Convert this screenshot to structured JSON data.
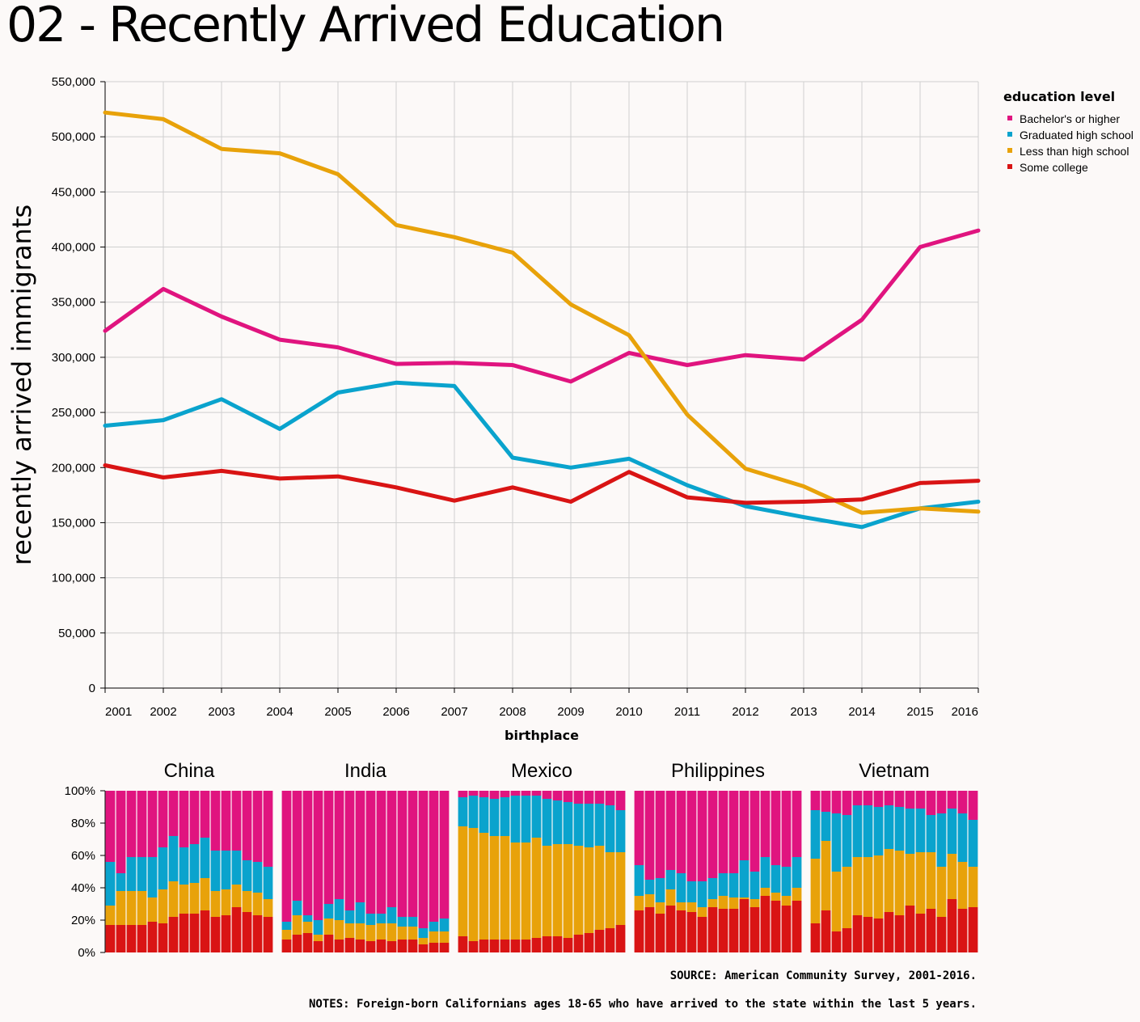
{
  "page_title": "02 - Recently Arrived Education",
  "source": "SOURCE: American Community Survey, 2001-2016.",
  "notes": "NOTES: Foreign-born Californians ages 18-65 who have arrived to the state within the last 5 years.",
  "colors": {
    "bachelors": "#e0147f",
    "highschool": "#0aa3cd",
    "lessthan": "#e8a20a",
    "somecollege": "#d91414"
  },
  "chart_data": [
    {
      "type": "line",
      "xlabel": "birthplace",
      "ylabel": "recently arrived immigrants",
      "ylim": [
        0,
        550000
      ],
      "yticks": [
        "0",
        "50,000",
        "100,000",
        "150,000",
        "200,000",
        "250,000",
        "300,000",
        "350,000",
        "400,000",
        "450,000",
        "500,000",
        "550,000"
      ],
      "x": [
        2001,
        2002,
        2003,
        2004,
        2005,
        2006,
        2007,
        2008,
        2009,
        2010,
        2011,
        2012,
        2013,
        2014,
        2015,
        2016
      ],
      "grid": true,
      "legend": {
        "title": "education level",
        "position": "right"
      },
      "series": [
        {
          "key": "bachelors",
          "name": "Bachelor's or higher",
          "values": [
            324000,
            362000,
            337000,
            316000,
            309000,
            294000,
            295000,
            293000,
            278000,
            304000,
            293000,
            302000,
            298000,
            334000,
            400000,
            415000
          ]
        },
        {
          "key": "highschool",
          "name": "Graduated high school",
          "values": [
            238000,
            243000,
            262000,
            235000,
            268000,
            277000,
            274000,
            209000,
            200000,
            208000,
            184000,
            165000,
            155000,
            146000,
            163000,
            169000
          ]
        },
        {
          "key": "lessthan",
          "name": "Less than high school",
          "values": [
            522000,
            516000,
            489000,
            485000,
            466000,
            420000,
            409000,
            395000,
            348000,
            320000,
            248000,
            199000,
            183000,
            159000,
            163000,
            160000
          ]
        },
        {
          "key": "somecollege",
          "name": "Some college",
          "values": [
            202000,
            191000,
            197000,
            190000,
            192000,
            182000,
            170000,
            182000,
            169000,
            196000,
            173000,
            168000,
            169000,
            171000,
            186000,
            188000
          ]
        }
      ]
    },
    {
      "type": "bar",
      "stacked": "percent",
      "yticks": [
        "0%",
        "20%",
        "40%",
        "60%",
        "80%",
        "100%"
      ],
      "ylim": [
        0,
        100
      ],
      "x": [
        2001,
        2002,
        2003,
        2004,
        2005,
        2006,
        2007,
        2008,
        2009,
        2010,
        2011,
        2012,
        2013,
        2014,
        2015,
        2016
      ],
      "stack_order": [
        "somecollege",
        "lessthan",
        "highschool",
        "bachelors"
      ],
      "facets": [
        {
          "name": "China",
          "somecollege": [
            17,
            17,
            17,
            17,
            19,
            18,
            22,
            24,
            24,
            26,
            22,
            23,
            28,
            25,
            23,
            22
          ],
          "lessthan": [
            12,
            21,
            21,
            21,
            15,
            21,
            22,
            18,
            19,
            20,
            16,
            16,
            14,
            13,
            14,
            11
          ],
          "highschool": [
            27,
            11,
            21,
            21,
            25,
            26,
            28,
            23,
            24,
            25,
            25,
            24,
            21,
            19,
            19,
            20
          ]
        },
        {
          "name": "India",
          "somecollege": [
            8,
            11,
            12,
            7,
            11,
            8,
            9,
            8,
            7,
            8,
            7,
            8,
            8,
            5,
            6,
            6
          ],
          "lessthan": [
            6,
            12,
            7,
            4,
            10,
            12,
            9,
            10,
            10,
            10,
            11,
            8,
            8,
            4,
            7,
            7
          ],
          "highschool": [
            5,
            9,
            4,
            9,
            9,
            13,
            8,
            13,
            7,
            6,
            10,
            6,
            6,
            6,
            6,
            8
          ]
        },
        {
          "name": "Mexico",
          "somecollege": [
            10,
            7,
            8,
            8,
            8,
            8,
            8,
            9,
            10,
            10,
            9,
            11,
            12,
            14,
            15,
            17
          ],
          "lessthan": [
            68,
            70,
            66,
            64,
            64,
            60,
            60,
            62,
            56,
            57,
            58,
            55,
            53,
            52,
            47,
            45
          ],
          "highschool": [
            18,
            20,
            22,
            23,
            24,
            29,
            29,
            26,
            29,
            27,
            26,
            26,
            27,
            26,
            29,
            26
          ]
        },
        {
          "name": "Philippines",
          "somecollege": [
            26,
            28,
            24,
            29,
            26,
            25,
            22,
            28,
            27,
            27,
            33,
            28,
            35,
            32,
            29,
            32
          ],
          "lessthan": [
            9,
            8,
            7,
            10,
            5,
            6,
            6,
            5,
            8,
            7,
            1,
            5,
            5,
            5,
            6,
            8
          ],
          "highschool": [
            19,
            9,
            15,
            12,
            18,
            13,
            16,
            13,
            14,
            15,
            23,
            17,
            19,
            17,
            18,
            19
          ]
        },
        {
          "name": "Vietnam",
          "somecollege": [
            18,
            26,
            13,
            15,
            23,
            22,
            21,
            25,
            23,
            29,
            24,
            27,
            22,
            33,
            27,
            28
          ],
          "lessthan": [
            40,
            43,
            37,
            38,
            36,
            37,
            39,
            39,
            40,
            32,
            38,
            35,
            31,
            28,
            29,
            25
          ],
          "highschool": [
            30,
            18,
            36,
            32,
            32,
            32,
            30,
            27,
            27,
            28,
            27,
            23,
            33,
            28,
            30,
            29
          ]
        }
      ]
    }
  ]
}
